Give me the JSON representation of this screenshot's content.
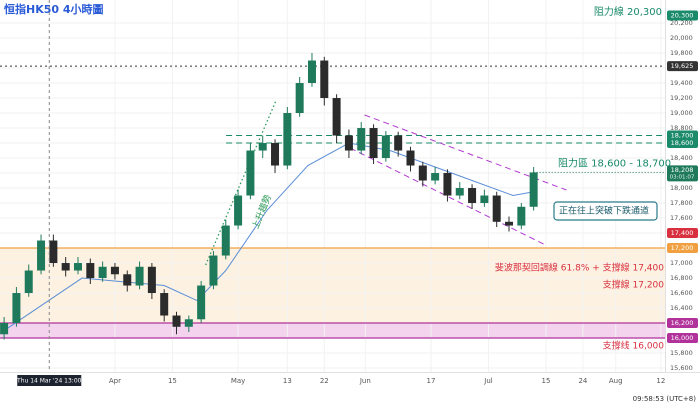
{
  "chart_data": {
    "type": "candlestick",
    "title": "恒指HK50 4小時圖",
    "x": [
      -9,
      -6,
      -3,
      0,
      3,
      6,
      9,
      12,
      15,
      18,
      21,
      24,
      27,
      30,
      33,
      36,
      39,
      42,
      45,
      48,
      51,
      54,
      57,
      60,
      63,
      66,
      69,
      72,
      75,
      78,
      81,
      84,
      87,
      90,
      93,
      96,
      99,
      102,
      105,
      108,
      111,
      114,
      117,
      120
    ],
    "open": [
      16050,
      16200,
      16600,
      16900,
      17300,
      17000,
      16900,
      17000,
      16800,
      16950,
      16850,
      16700,
      16950,
      16600,
      16300,
      16150,
      16250,
      16700,
      17100,
      17500,
      17900,
      18500,
      18600,
      18300,
      19000,
      19400,
      19700,
      19200,
      18700,
      18500,
      18800,
      18400,
      18700,
      18500,
      18300,
      18100,
      18200,
      17900,
      18000,
      17800,
      17900,
      17550,
      17500,
      17750
    ],
    "high": [
      16280,
      16680,
      16980,
      17380,
      17380,
      17080,
      17080,
      17060,
      17020,
      17000,
      16900,
      17020,
      17000,
      16650,
      16350,
      16300,
      16760,
      17160,
      17580,
      17980,
      18600,
      18700,
      18650,
      19080,
      19480,
      19800,
      19750,
      19250,
      18780,
      18880,
      18850,
      18760,
      18750,
      18550,
      18350,
      18280,
      18250,
      18080,
      18050,
      17980,
      17950,
      17620,
      17800,
      18280
    ],
    "low": [
      15980,
      16150,
      16550,
      16850,
      16950,
      16820,
      16850,
      16720,
      16750,
      16780,
      16620,
      16650,
      16520,
      16220,
      16050,
      16080,
      16200,
      16650,
      17050,
      17450,
      17850,
      18400,
      18200,
      18250,
      18950,
      19350,
      19100,
      18600,
      18400,
      18450,
      18320,
      18350,
      18420,
      18220,
      18020,
      18050,
      17820,
      17850,
      17720,
      17750,
      17480,
      17420,
      17450,
      17700
    ],
    "close": [
      16200,
      16600,
      16900,
      17300,
      17000,
      16900,
      17000,
      16800,
      16950,
      16850,
      16700,
      16950,
      16600,
      16300,
      16150,
      16250,
      16700,
      17100,
      17500,
      17900,
      18500,
      18600,
      18300,
      19000,
      19400,
      19700,
      19200,
      18700,
      18500,
      18800,
      18400,
      18700,
      18500,
      18300,
      18100,
      18200,
      17900,
      18000,
      17800,
      17900,
      17550,
      17500,
      17750,
      18208
    ],
    "up_color": "#1f7a5c",
    "down_color": "#2b2b2b",
    "moving_average": {
      "x": [
        -9,
        10,
        30,
        38,
        45,
        55,
        65,
        75,
        85,
        95,
        105,
        115,
        120
      ],
      "values": [
        16100,
        16800,
        16700,
        16500,
        16900,
        17700,
        18300,
        18600,
        18500,
        18300,
        18100,
        17900,
        17950
      ],
      "color": "#5b8fd6"
    },
    "xlim": [
      -10,
      152
    ],
    "xticks": [
      {
        "value": 18,
        "label": "Apr"
      },
      {
        "value": 32,
        "label": "15"
      },
      {
        "value": 48,
        "label": "May"
      },
      {
        "value": 60,
        "label": "13"
      },
      {
        "value": 69,
        "label": "22"
      },
      {
        "value": 79,
        "label": "Jun"
      },
      {
        "value": 95,
        "label": "17"
      },
      {
        "value": 109,
        "label": "Jul"
      },
      {
        "value": 123,
        "label": "15"
      },
      {
        "value": 132,
        "label": "24"
      },
      {
        "value": 140,
        "label": "Aug"
      },
      {
        "value": 151,
        "label": "12"
      }
    ],
    "ylim": [
      15547,
      20507
    ],
    "yticks": [
      {
        "value": 15600,
        "label": "15,600"
      },
      {
        "value": 15800,
        "label": "15,800"
      },
      {
        "value": 16000,
        "label": "16,000"
      },
      {
        "value": 16200,
        "label": "16,200"
      },
      {
        "value": 16400,
        "label": "16,400"
      },
      {
        "value": 16600,
        "label": "16,600"
      },
      {
        "value": 16800,
        "label": "16,800"
      },
      {
        "value": 17000,
        "label": "17,000"
      },
      {
        "value": 17200,
        "label": "17,200"
      },
      {
        "value": 17400,
        "label": "17,400"
      },
      {
        "value": 17600,
        "label": "17,600"
      },
      {
        "value": 17800,
        "label": "17,800"
      },
      {
        "value": 18000,
        "label": "18,000"
      },
      {
        "value": 18200,
        "label": "18,200"
      },
      {
        "value": 18400,
        "label": "18,400"
      },
      {
        "value": 18600,
        "label": "18,600"
      },
      {
        "value": 18800,
        "label": "18,800"
      },
      {
        "value": 19000,
        "label": "19,000"
      },
      {
        "value": 19200,
        "label": "19,200"
      },
      {
        "value": 19400,
        "label": "19,400"
      },
      {
        "value": 19600,
        "label": "19,600"
      },
      {
        "value": 19800,
        "label": "19,800"
      },
      {
        "value": 20000,
        "label": "20,000"
      },
      {
        "value": 20200,
        "label": "20,200"
      }
    ],
    "zones": [
      {
        "from": 16200,
        "to": 17200,
        "color": "#fdf1e1"
      },
      {
        "from": 16000,
        "to": 16200,
        "color": "#f3d3ee"
      }
    ],
    "levels": [
      {
        "value": 20300,
        "tag": "20,300",
        "color": "#1a8a6a",
        "style": "none"
      },
      {
        "value": 19625,
        "tag": "19,625",
        "color": "#333333",
        "style": "dotted"
      },
      {
        "value": 18700,
        "tag": "18,700",
        "color": "#1a8a6a",
        "style": "dashed"
      },
      {
        "value": 18600,
        "tag": "18,600",
        "color": "#1a8a6a",
        "style": "dashed"
      },
      {
        "value": 17400,
        "tag": "17,400",
        "color": "#d93040",
        "style": "none"
      },
      {
        "value": 17200,
        "tag": "17,200",
        "color": "#f0a040",
        "style": "solid"
      },
      {
        "value": 16200,
        "tag": "16,200",
        "color": "#b0329a",
        "style": "solid"
      },
      {
        "value": 16000,
        "tag": "16,000",
        "color": "#b0329a",
        "style": "solid"
      }
    ],
    "last_price": {
      "value": 18208,
      "tag": "18,208",
      "countdown": "03:01:07",
      "color": "#1f7a5c"
    },
    "channel": [
      {
        "x": [
          78.8,
          128
        ],
        "y": [
          18974,
          17974
        ]
      },
      {
        "x": [
          75.3,
          122.9
        ],
        "y": [
          18533,
          17240
        ]
      }
    ],
    "channel_color": "#b03ad0",
    "trend": {
      "x": [
        40.1,
        57.3
      ],
      "y": [
        16974,
        19174
      ],
      "color": "#2f9a5a"
    },
    "annotations": [
      {
        "text": "阻力線 20,300",
        "color": "#1a8a6a"
      },
      {
        "text": "阻力區 18,600 - 18,700",
        "color": "#1a8a6a"
      },
      {
        "text": "正在往上突破下跌通道",
        "color": "#1a5a6a"
      },
      {
        "text": "斐波那契回調線 61.8% + 支撐線 17,400",
        "color": "#d93040"
      },
      {
        "text": "支撐線 17,200",
        "color": "#d93040"
      },
      {
        "text": "支撐线 16,000",
        "color": "#d93040"
      },
      {
        "text": "上升趨勢",
        "color": "#2f9a5a"
      }
    ],
    "crosshair": {
      "x": 2,
      "label": "Thu 14 Mar '24 13:00"
    },
    "clock": "09:58:53 (UTC+8)"
  }
}
